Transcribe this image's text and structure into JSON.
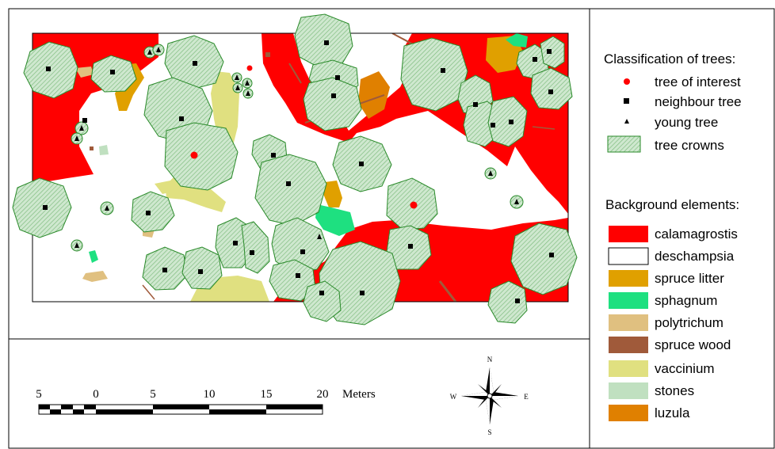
{
  "legend": {
    "classification_title": "Classification of trees:",
    "tree_items": [
      {
        "label": "tree of interest",
        "symbol": "red-dot"
      },
      {
        "label": "neighbour tree",
        "symbol": "black-square"
      },
      {
        "label": "young tree",
        "symbol": "black-triangle"
      },
      {
        "label": "tree crowns",
        "symbol": "hatched-green"
      }
    ],
    "background_title": "Background elements:",
    "background_items": [
      {
        "label": "calamagrostis",
        "color": "#ff0000"
      },
      {
        "label": "deschampsia",
        "color": "#ffffff"
      },
      {
        "label": "spruce litter",
        "color": "#e0a000"
      },
      {
        "label": "sphagnum",
        "color": "#1ee080"
      },
      {
        "label": "polytrichum",
        "color": "#e0c080"
      },
      {
        "label": "spruce wood",
        "color": "#a05a3a"
      },
      {
        "label": "vaccinium",
        "color": "#e0e080"
      },
      {
        "label": "stones",
        "color": "#c0e0c0"
      },
      {
        "label": "luzula",
        "color": "#e08000"
      }
    ]
  },
  "scalebar": {
    "labels": [
      "5",
      "0",
      "5",
      "10",
      "15",
      "20"
    ],
    "unit": "Meters"
  },
  "compass": {
    "n": "N",
    "s": "S",
    "e": "E",
    "w": "W"
  },
  "colors": {
    "crown_fill": "#b8dcb8",
    "crown_stroke": "#2a8a2a",
    "tree_of_interest": "#ff0000",
    "neighbour": "#000000"
  }
}
